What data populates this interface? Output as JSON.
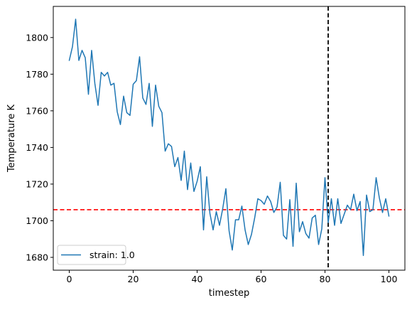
{
  "chart_data": {
    "type": "line",
    "xlabel": "timestep",
    "ylabel": "Temperature K",
    "xlim": [
      -5,
      105
    ],
    "ylim": [
      1673,
      1817
    ],
    "xticks": [
      0,
      20,
      40,
      60,
      80,
      100
    ],
    "yticks": [
      1680,
      1700,
      1720,
      1740,
      1760,
      1780,
      1800
    ],
    "grid": false,
    "legend_position": "lower-left",
    "series": [
      {
        "name": "strain: 1.0",
        "color": "#1f77b4",
        "x": [
          0,
          1,
          2,
          3,
          4,
          5,
          6,
          7,
          8,
          9,
          10,
          11,
          12,
          13,
          14,
          15,
          16,
          17,
          18,
          19,
          20,
          21,
          22,
          23,
          24,
          25,
          26,
          27,
          28,
          29,
          30,
          31,
          32,
          33,
          34,
          35,
          36,
          37,
          38,
          39,
          40,
          41,
          42,
          43,
          44,
          45,
          46,
          47,
          48,
          49,
          50,
          51,
          52,
          53,
          54,
          55,
          56,
          57,
          58,
          59,
          60,
          61,
          62,
          63,
          64,
          65,
          66,
          67,
          68,
          69,
          70,
          71,
          72,
          73,
          74,
          75,
          76,
          77,
          78,
          79,
          80,
          81,
          82,
          83,
          84,
          85,
          86,
          87,
          88,
          89,
          90,
          91,
          92,
          93,
          94,
          95,
          96,
          97,
          98,
          99,
          100
        ],
        "values": [
          1787.5,
          1795,
          1810,
          1787.5,
          1793,
          1789,
          1769,
          1793,
          1775,
          1763,
          1781,
          1779,
          1781,
          1774,
          1775,
          1759.5,
          1752.5,
          1768,
          1759,
          1757.5,
          1774.5,
          1776.5,
          1789.5,
          1767,
          1763.5,
          1775,
          1751.5,
          1774,
          1762.5,
          1759,
          1738,
          1742,
          1740.5,
          1729.5,
          1734.5,
          1722,
          1738,
          1717,
          1731.5,
          1716,
          1721.5,
          1729.5,
          1695,
          1724,
          1704,
          1695,
          1705,
          1697.5,
          1706.5,
          1717.5,
          1694.5,
          1684,
          1700.5,
          1700.5,
          1708,
          1695,
          1687,
          1692.5,
          1701.5,
          1712,
          1711,
          1709,
          1713.5,
          1710.5,
          1704.5,
          1707.5,
          1721,
          1692,
          1690,
          1711.5,
          1686,
          1720.5,
          1694,
          1699.5,
          1693,
          1690.5,
          1701.5,
          1703,
          1687,
          1695.5,
          1723.5,
          1699,
          1712,
          1697.5,
          1712,
          1698.5,
          1703.5,
          1708.5,
          1706,
          1714.5,
          1705.5,
          1710.5,
          1681,
          1714,
          1705,
          1706,
          1723.5,
          1712.5,
          1704.5,
          1712,
          1702.5
        ]
      }
    ],
    "reference_lines": [
      {
        "orientation": "horizontal",
        "value": 1706,
        "color": "#ff0000",
        "style": "dashed"
      },
      {
        "orientation": "vertical",
        "value": 81,
        "color": "#000000",
        "style": "dashed"
      }
    ]
  }
}
